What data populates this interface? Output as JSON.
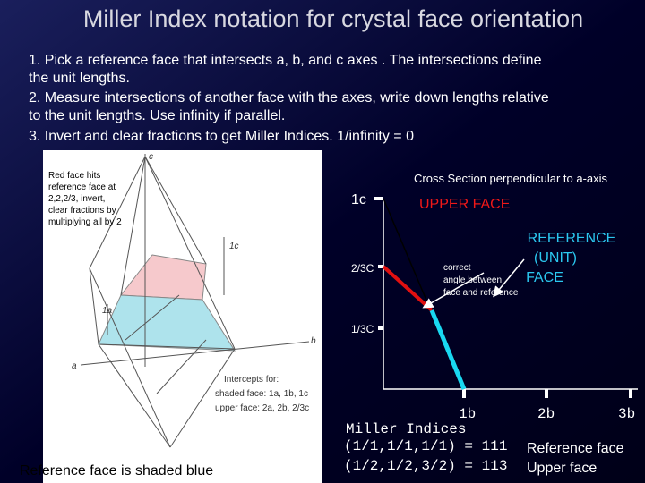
{
  "title": "Miller Index notation for crystal face orientation",
  "instructions": [
    "1. Pick a reference face that intersects a, b, and  c axes . The intersections define",
    "the unit lengths.",
    "2. Measure intersections of another face with the axes, write down lengths relative",
    "to the unit lengths. Use infinity if parallel.",
    "3. Invert and clear fractions to get Miller Indices. 1/infinity = 0"
  ],
  "left_figure": {
    "note": [
      "Red face hits",
      "reference face at",
      "2,2,2/3, invert,",
      "clear fractions by",
      "multiplying all by 2"
    ],
    "axis_labels": {
      "c": "c",
      "b": "b",
      "a": "a"
    },
    "dimensions": {
      "c": "1c",
      "a": "1a"
    },
    "intercepts": [
      "Intercepts for:",
      "shaded face: 1a, 1b, 1c",
      "upper face: 2a, 2b, 2/3c"
    ],
    "caption": "Reference face is shaded blue"
  },
  "right_figure": {
    "title": "Cross Section perpendicular to a-axis",
    "y_labels": [
      "1c",
      "2/3C",
      "1/3C"
    ],
    "x_labels": [
      "1b",
      "2b",
      "3b"
    ],
    "upper_face": "UPPER FACE",
    "reference_face": [
      "REFERENCE",
      "(UNIT)",
      "FACE"
    ],
    "angle_note": [
      "correct",
      "angle between",
      "face and reference"
    ]
  },
  "miller": {
    "heading": "Miller Indices",
    "rows": [
      {
        "expr": "(1/1,1/1,1/1) = 111",
        "label": "Reference face"
      },
      {
        "expr": "(1/2,1/2,3/2) = 113",
        "label": "Upper face"
      }
    ]
  }
}
